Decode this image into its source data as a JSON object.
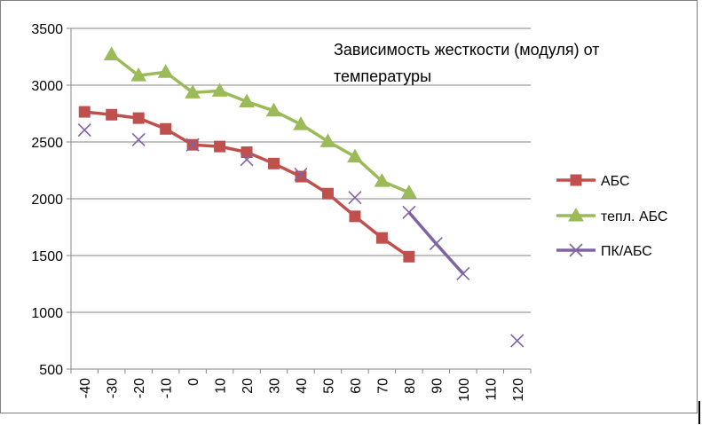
{
  "chart_data": {
    "type": "line",
    "title": "Зависимость жесткости (модуля) от температуры",
    "title_lines": [
      "Зависимость жесткости (модуля) от",
      "температуры"
    ],
    "xlabel": "",
    "ylabel": "",
    "categories": [
      -40,
      -30,
      -20,
      -10,
      0,
      10,
      20,
      30,
      40,
      50,
      60,
      70,
      80,
      90,
      100,
      110,
      120
    ],
    "ylim": [
      500,
      3500
    ],
    "yticks": [
      500,
      1000,
      1500,
      2000,
      2500,
      3000,
      3500
    ],
    "grid": true,
    "legend_position": "right",
    "series": [
      {
        "name": "АБС",
        "color": "#c0504d",
        "marker": "square",
        "line": true,
        "points": [
          [
            -40,
            2765
          ],
          [
            -30,
            2740
          ],
          [
            -20,
            2710
          ],
          [
            -10,
            2615
          ],
          [
            0,
            2475
          ],
          [
            10,
            2460
          ],
          [
            20,
            2410
          ],
          [
            30,
            2310
          ],
          [
            40,
            2195
          ],
          [
            50,
            2045
          ],
          [
            60,
            1845
          ],
          [
            70,
            1655
          ],
          [
            80,
            1490
          ]
        ]
      },
      {
        "name": "тепл. АБС",
        "color": "#9bbb59",
        "marker": "triangle",
        "line": true,
        "points": [
          [
            -30,
            3270
          ],
          [
            -20,
            3085
          ],
          [
            -10,
            3115
          ],
          [
            0,
            2935
          ],
          [
            10,
            2950
          ],
          [
            20,
            2855
          ],
          [
            30,
            2775
          ],
          [
            40,
            2655
          ],
          [
            50,
            2505
          ],
          [
            60,
            2370
          ],
          [
            70,
            2155
          ],
          [
            80,
            2055
          ]
        ]
      },
      {
        "name": "ПК/АБС",
        "color": "#8064a2",
        "marker": "x",
        "line": false,
        "points": [
          [
            -40,
            2605
          ],
          [
            -20,
            2520
          ],
          [
            0,
            2475
          ],
          [
            20,
            2345
          ],
          [
            40,
            2215
          ],
          [
            60,
            2010
          ],
          [
            80,
            1880
          ],
          [
            90,
            1605
          ],
          [
            100,
            1340
          ],
          [
            120,
            750
          ]
        ],
        "line_segment_x": [
          80,
          100
        ]
      }
    ]
  }
}
